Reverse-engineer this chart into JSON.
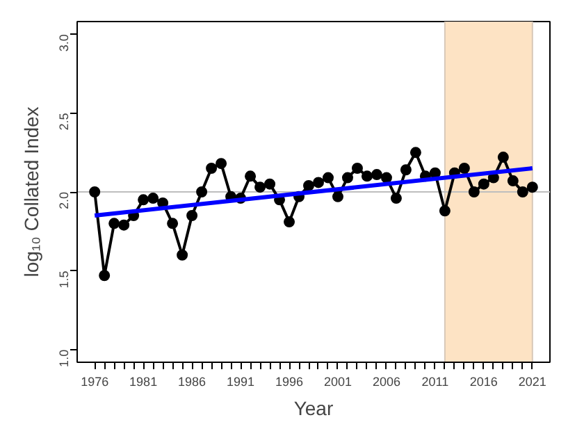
{
  "chart_data": {
    "type": "line",
    "xlabel": "Year",
    "ylabel": "log₁₀ Collated Index",
    "x": [
      1976,
      1977,
      1978,
      1979,
      1980,
      1981,
      1982,
      1983,
      1984,
      1985,
      1986,
      1987,
      1988,
      1989,
      1990,
      1991,
      1992,
      1993,
      1994,
      1995,
      1996,
      1997,
      1998,
      1999,
      2000,
      2001,
      2002,
      2003,
      2004,
      2005,
      2006,
      2007,
      2008,
      2009,
      2010,
      2011,
      2012,
      2013,
      2014,
      2015,
      2016,
      2017,
      2018,
      2019,
      2020,
      2021
    ],
    "series": [
      {
        "color": "#000000",
        "marker": "circle",
        "values": [
          2.0,
          1.47,
          1.8,
          1.79,
          1.85,
          1.95,
          1.96,
          1.93,
          1.8,
          1.6,
          1.85,
          2.0,
          2.15,
          2.18,
          1.97,
          1.96,
          2.1,
          2.03,
          2.05,
          1.95,
          1.81,
          1.97,
          2.04,
          2.06,
          2.09,
          1.97,
          2.09,
          2.15,
          2.1,
          2.11,
          2.09,
          1.96,
          2.14,
          2.25,
          2.1,
          2.12,
          1.88,
          2.12,
          2.15,
          2.0,
          2.05,
          2.09,
          2.22,
          2.07,
          2.0,
          2.03
        ]
      },
      {
        "color": "#0000ff",
        "marker": "none",
        "x": [
          1976,
          2021
        ],
        "values": [
          1.85,
          2.15
        ]
      }
    ],
    "xlim": [
      1974.2,
      2022.8
    ],
    "ylim": [
      0.92,
      3.08
    ],
    "xticks": [
      1976,
      {
        "value": 1977,
        "label": null
      },
      {
        "value": 1978,
        "label": null
      },
      {
        "value": 1979,
        "label": null
      },
      {
        "value": 1980,
        "label": null
      },
      1981,
      {
        "value": 1982,
        "label": null
      },
      {
        "value": 1983,
        "label": null
      },
      {
        "value": 1984,
        "label": null
      },
      {
        "value": 1985,
        "label": null
      },
      1986,
      {
        "value": 1987,
        "label": null
      },
      {
        "value": 1988,
        "label": null
      },
      {
        "value": 1989,
        "label": null
      },
      {
        "value": 1990,
        "label": null
      },
      1991,
      {
        "value": 1992,
        "label": null
      },
      {
        "value": 1993,
        "label": null
      },
      {
        "value": 1994,
        "label": null
      },
      {
        "value": 1995,
        "label": null
      },
      1996,
      {
        "value": 1997,
        "label": null
      },
      {
        "value": 1998,
        "label": null
      },
      {
        "value": 1999,
        "label": null
      },
      {
        "value": 2000,
        "label": null
      },
      2001,
      {
        "value": 2002,
        "label": null
      },
      {
        "value": 2003,
        "label": null
      },
      {
        "value": 2004,
        "label": null
      },
      {
        "value": 2005,
        "label": null
      },
      2006,
      {
        "value": 2007,
        "label": null
      },
      {
        "value": 2008,
        "label": null
      },
      {
        "value": 2009,
        "label": null
      },
      {
        "value": 2010,
        "label": null
      },
      2011,
      {
        "value": 2012,
        "label": null
      },
      {
        "value": 2013,
        "label": null
      },
      {
        "value": 2014,
        "label": null
      },
      {
        "value": 2015,
        "label": null
      },
      2016,
      {
        "value": 2017,
        "label": null
      },
      {
        "value": 2018,
        "label": null
      },
      {
        "value": 2019,
        "label": null
      },
      {
        "value": 2020,
        "label": null
      },
      2021
    ],
    "yticks": [
      {
        "value": 1.0,
        "label": "1.0"
      },
      {
        "value": 1.5,
        "label": "1.5"
      },
      {
        "value": 2.0,
        "label": "2.0"
      },
      {
        "value": 2.5,
        "label": "2.5"
      },
      {
        "value": 3.0,
        "label": "3.0"
      }
    ],
    "ref_lines": [
      {
        "axis": "y",
        "value": 2.0,
        "label": null,
        "color": "#bebebe"
      }
    ],
    "bands": [
      {
        "axis": "x",
        "from": 2012,
        "to": 2021,
        "label": null,
        "color": "#fde3c4"
      }
    ],
    "line_style": "solid",
    "grid": false
  }
}
